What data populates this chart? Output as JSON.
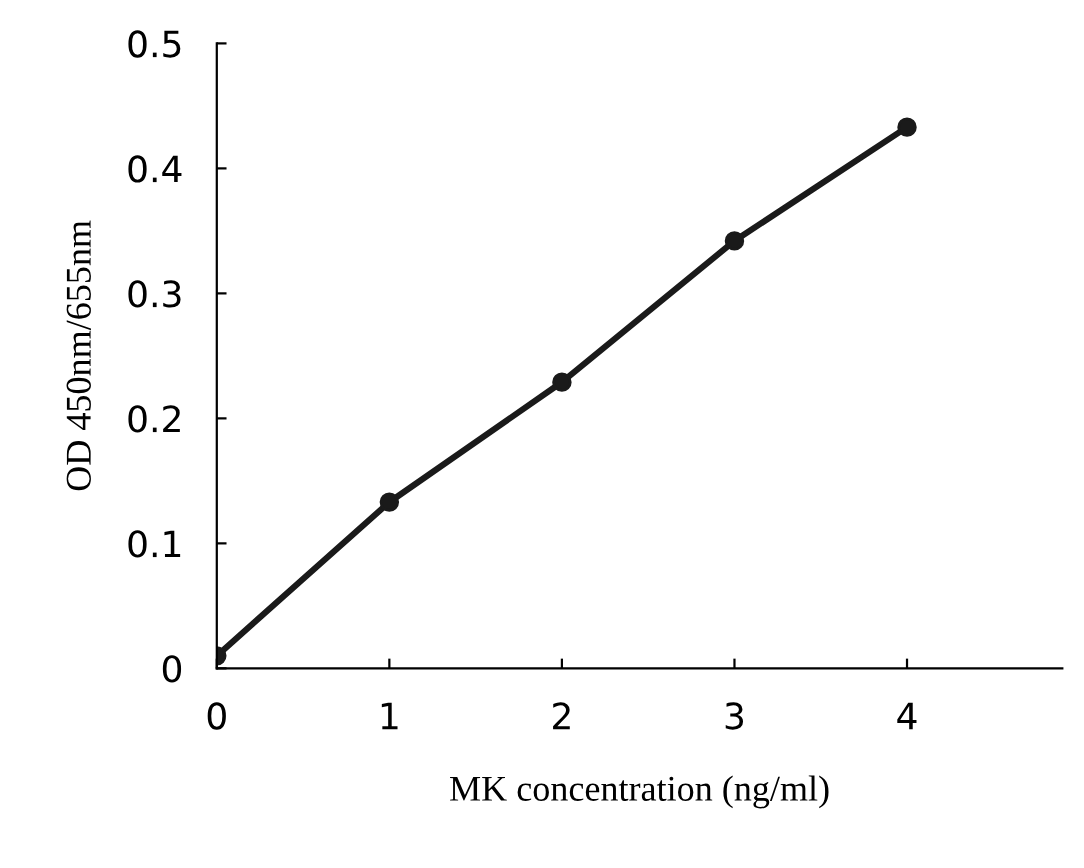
{
  "chart_data": {
    "type": "line",
    "xlabel": "MK concentration (ng/ml)",
    "ylabel": "OD 450nm/655nm",
    "x": [
      0,
      1,
      2,
      3,
      4
    ],
    "series": [
      {
        "color": "#1a1a1a",
        "values": [
          0.01,
          0.133,
          0.229,
          0.342,
          0.433
        ]
      }
    ],
    "xlim": [
      0,
      4.9
    ],
    "xticks": [
      0,
      1,
      2,
      3,
      4
    ],
    "ylim": [
      0,
      0.5
    ],
    "yticks": [
      0,
      0.1,
      0.2,
      0.3,
      0.4,
      0.5
    ],
    "marker": "circle",
    "line_style": "solid",
    "grid": false,
    "legend": false
  }
}
